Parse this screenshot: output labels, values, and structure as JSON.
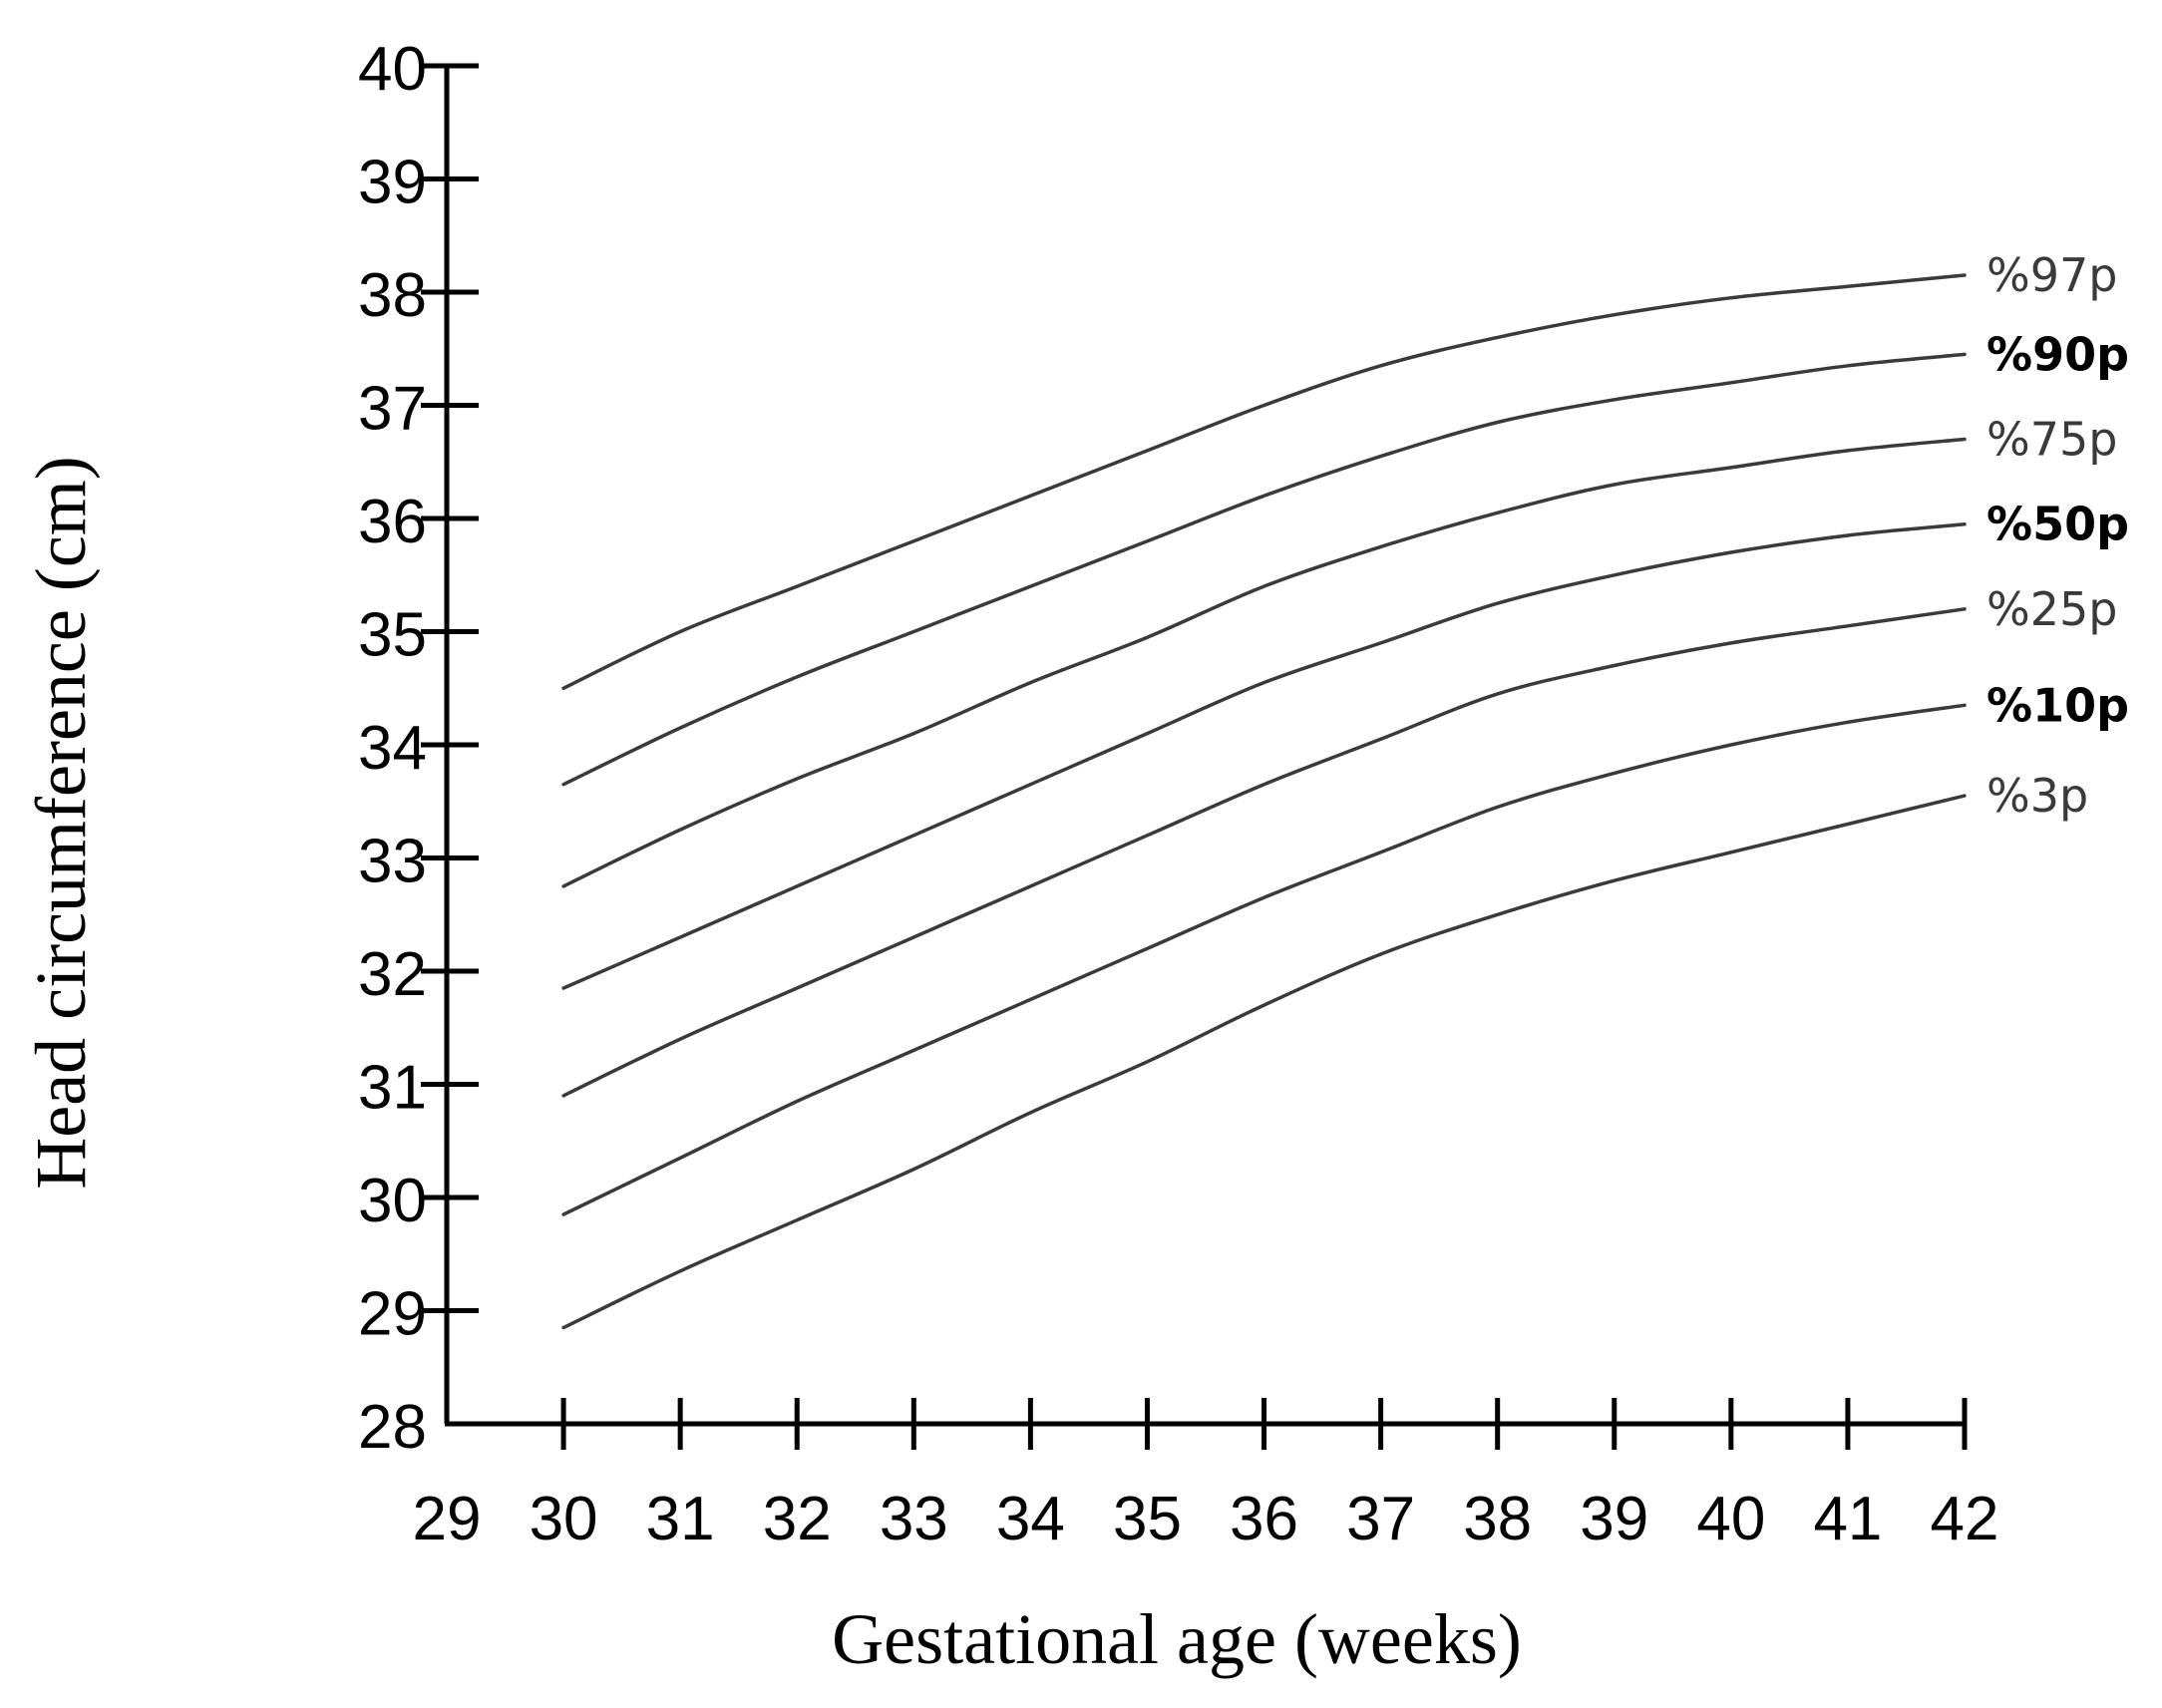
{
  "chart_data": {
    "type": "line",
    "title": "",
    "xlabel": "Gestational age (weeks)",
    "ylabel": "Head circumference (cm)",
    "xlim": [
      29,
      42
    ],
    "ylim": [
      28,
      40
    ],
    "x_ticks": [
      "29",
      "30",
      "31",
      "32",
      "33",
      "34",
      "35",
      "36",
      "37",
      "38",
      "39",
      "40",
      "41",
      "42"
    ],
    "y_ticks": [
      "28",
      "29",
      "30",
      "31",
      "32",
      "33",
      "34",
      "35",
      "36",
      "37",
      "38",
      "39",
      "40"
    ],
    "grid": false,
    "legend": "labels at right end of each line",
    "line_color": "#3a3a3a",
    "x": [
      30,
      31,
      32,
      33,
      34,
      35,
      36,
      37,
      38,
      39,
      40,
      41,
      42
    ],
    "series": [
      {
        "name": "%97p",
        "bold": false,
        "values": [
          34.5,
          35.0,
          35.4,
          35.8,
          36.2,
          36.6,
          37.0,
          37.35,
          37.6,
          37.8,
          37.95,
          38.05,
          38.15
        ]
      },
      {
        "name": "%90p",
        "bold": true,
        "values": [
          33.65,
          34.15,
          34.6,
          35.0,
          35.4,
          35.8,
          36.2,
          36.55,
          36.85,
          37.05,
          37.2,
          37.35,
          37.45
        ]
      },
      {
        "name": "%75p",
        "bold": false,
        "values": [
          32.75,
          33.25,
          33.7,
          34.1,
          34.55,
          34.95,
          35.4,
          35.75,
          36.05,
          36.3,
          36.45,
          36.6,
          36.7
        ]
      },
      {
        "name": "%50p",
        "bold": true,
        "values": [
          31.85,
          32.3,
          32.75,
          33.2,
          33.65,
          34.1,
          34.55,
          34.9,
          35.25,
          35.5,
          35.7,
          35.85,
          35.95
        ]
      },
      {
        "name": "%25p",
        "bold": false,
        "values": [
          30.9,
          31.4,
          31.85,
          32.3,
          32.75,
          33.2,
          33.65,
          34.05,
          34.45,
          34.7,
          34.9,
          35.05,
          35.2
        ]
      },
      {
        "name": "%10p",
        "bold": true,
        "values": [
          29.85,
          30.35,
          30.85,
          31.3,
          31.75,
          32.2,
          32.65,
          33.05,
          33.45,
          33.75,
          34.0,
          34.2,
          34.35
        ]
      },
      {
        "name": "%3p",
        "bold": false,
        "values": [
          28.85,
          29.35,
          29.8,
          30.25,
          30.75,
          31.2,
          31.7,
          32.15,
          32.5,
          32.8,
          33.05,
          33.3,
          33.55
        ]
      }
    ]
  }
}
